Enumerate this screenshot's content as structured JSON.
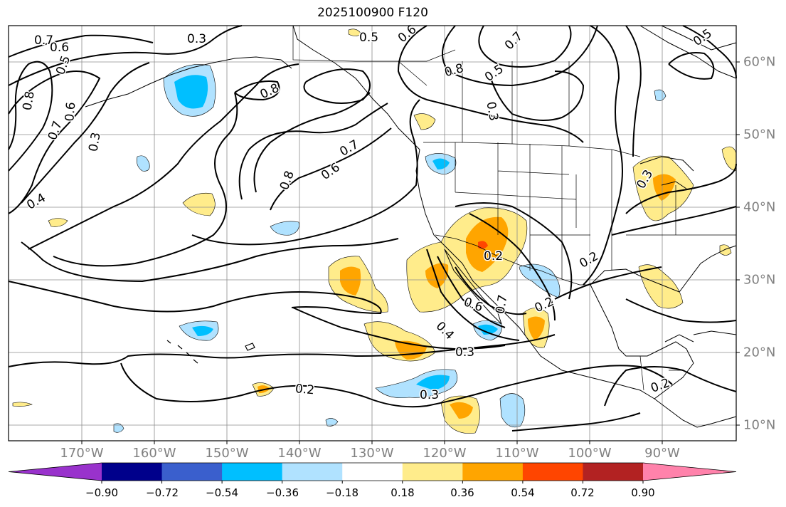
{
  "title": "2025100900 F120",
  "map": {
    "lon_labels": [
      "170°W",
      "160°W",
      "150°W",
      "140°W",
      "130°W",
      "120°W",
      "110°W",
      "100°W",
      "90°W"
    ],
    "lat_labels": [
      "60°N",
      "50°N",
      "40°N",
      "30°N",
      "20°N",
      "10°N"
    ],
    "contour_labels": [
      "0.7",
      "0.6",
      "0.5",
      "0.3",
      "0.8",
      "0.7",
      "0.6",
      "0.5",
      "0.3",
      "0.8",
      "0.7",
      "0.6",
      "0.8",
      "0.4",
      "0.3",
      "0.5",
      "0.6",
      "0.7",
      "0.8",
      "0.5",
      "0.3",
      "0.2",
      "0.6",
      "0.7",
      "0.4",
      "0.3",
      "0.2",
      "0.2",
      "0.3",
      "0.2",
      "0.2"
    ]
  },
  "colorbar": {
    "tick_labels": [
      "−0.90",
      "−0.72",
      "−0.54",
      "−0.36",
      "−0.18",
      "0.18",
      "0.36",
      "0.54",
      "0.72",
      "0.90"
    ],
    "colors": [
      "#9932cc",
      "#00008b",
      "#3a5fcd",
      "#00bfff",
      "#b0e2ff",
      "#ffffff",
      "#ffec8b",
      "#ffa500",
      "#ff4500",
      "#b22222",
      "#ff82ab"
    ]
  }
}
